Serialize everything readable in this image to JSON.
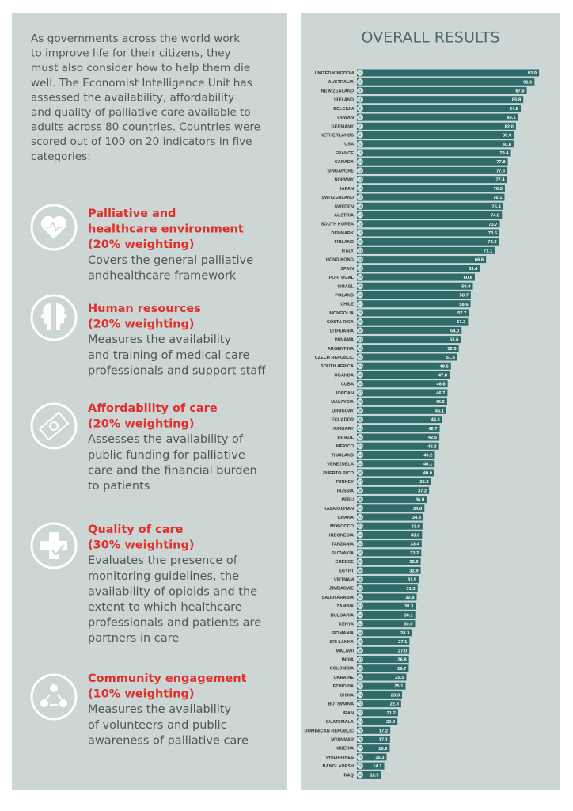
{
  "chart_data": {
    "type": "bar",
    "orientation": "horizontal",
    "title": "OVERALL RESULTS",
    "color": "#2e6b69",
    "categories": [
      "UNITED KINGDOM",
      "AUSTRALIA",
      "NEW ZEALAND",
      "IRELAND",
      "BELGIUM",
      "TAIWAN",
      "GERMANY",
      "NETHERLANDS",
      "USA",
      "FRANCE",
      "CANADA",
      "SINGAPORE",
      "NORWAY",
      "JAPAN",
      "SWITZERLAND",
      "SWEDEN",
      "AUSTRIA",
      "SOUTH KOREA",
      "DENMARK",
      "FINLAND",
      "ITALY",
      "HONG KONG",
      "SPAIN",
      "PORTUGAL",
      "ISRAEL",
      "POLAND",
      "CHILE",
      "MONGOLIA",
      "COSTA RICA",
      "LITHUANIA",
      "PANAMA",
      "ARGENTINA",
      "CZECH REPUBLIC",
      "SOUTH AFRICA",
      "UGANDA",
      "CUBA",
      "JORDAN",
      "MALAYSIA",
      "URUGUAY",
      "ECUADOR",
      "HUNGARY",
      "BRAZIL",
      "MEXICO",
      "THAILAND",
      "VENEZUELA",
      "PUERTO RICO",
      "TURKEY",
      "RUSSIA",
      "PERU",
      "KAZAKHSTAN",
      "GHANA",
      "MOROCCO",
      "INDONESIA",
      "TANZANIA",
      "SLOVAKIA",
      "GREECE",
      "EGYPT",
      "VIETNAM",
      "ZIMBABWE",
      "SAUDI ARABIA",
      "ZAMBIA",
      "BULGARIA",
      "KENYA",
      "ROMANIA",
      "SRI LANKA",
      "MALAWI",
      "INDIA",
      "COLOMBIA",
      "UKRAINE",
      "ETHIOPIA",
      "CHINA",
      "BOTSWANA",
      "IRAN",
      "GUATEMALA",
      "DOMINICAN REPUBLIC",
      "MYANMAR",
      "NIGERIA",
      "PHILIPPINES",
      "BANGLADESH",
      "IRAQ"
    ],
    "ranks": [
      "1",
      "2",
      "3",
      "4",
      "5",
      "6",
      "7",
      "8",
      "9",
      "10",
      "11",
      "12",
      "13",
      "14",
      "15",
      "16",
      "17",
      "18",
      "19",
      "20",
      "21",
      "22",
      "23",
      "24",
      "25",
      "26",
      "27",
      "28",
      "29",
      "30",
      "31",
      "32",
      "33",
      "34",
      "35",
      "36",
      "37",
      "38",
      "39",
      "40",
      "41",
      "42",
      "43",
      "44",
      "45",
      "46",
      "47",
      "48",
      "49",
      "50",
      "51",
      "52",
      "53",
      "54",
      "55",
      "=56",
      "=56",
      "58",
      "59",
      "60",
      "61",
      "62",
      "63",
      "64",
      "65",
      "66",
      "67",
      "68",
      "69",
      "70",
      "71",
      "72",
      "73",
      "74",
      "75",
      "76",
      "77",
      "78",
      "79",
      "80"
    ],
    "values": [
      93.9,
      91.6,
      87.6,
      85.8,
      84.5,
      83.1,
      82,
      80.9,
      80.8,
      79.4,
      77.8,
      77.6,
      77.4,
      76.3,
      76.1,
      75.4,
      74.8,
      73.7,
      73.5,
      73.3,
      71.1,
      66.6,
      63.4,
      60.8,
      59.8,
      58.7,
      58.6,
      57.7,
      57.3,
      54,
      53.6,
      52.5,
      51.8,
      48.5,
      47.8,
      46.8,
      46.7,
      46.5,
      46.1,
      44,
      42.7,
      42.5,
      42.3,
      40.2,
      40.1,
      40,
      38.2,
      37.2,
      36,
      34.8,
      34.3,
      33.8,
      33.6,
      33.4,
      33.2,
      32.9,
      32.9,
      31.9,
      31.3,
      30.8,
      30.3,
      30.1,
      30,
      28.3,
      27.1,
      27,
      26.8,
      26.7,
      25.5,
      25.1,
      23.3,
      22.8,
      21.2,
      20.9,
      17.2,
      17.1,
      16.9,
      15.3,
      14.1,
      12.5
    ],
    "value_labels": [
      "93.9",
      "91.6",
      "87.6",
      "85.8",
      "84.5",
      "83.1",
      "82.0",
      "80.9",
      "80.8",
      "79.4",
      "77.8",
      "77.6",
      "77.4",
      "76.3",
      "76.1",
      "75.4",
      "74.8",
      "73.7",
      "73.5",
      "73.3",
      "71.1",
      "66.6",
      "63.4",
      "60.8",
      "59.8",
      "58.7",
      "58.6",
      "57.7",
      "57.3",
      "54.0",
      "53.6",
      "52.5",
      "51.8",
      "48.5",
      "47.8",
      "46.8",
      "46.7",
      "46.5",
      "46.1",
      "44.0",
      "42.7",
      "42.5",
      "42.3",
      "40.2",
      "40.1",
      "40.0",
      "38.2",
      "37.2",
      "36.0",
      "34.8",
      "34.3",
      "33.8",
      "33.6",
      "33.4",
      "33.2",
      "32.9",
      "32.9",
      "31.9",
      "31.3",
      "30.8",
      "30.3",
      "30.1",
      "30.0",
      "28.3",
      "27.1",
      "27.0",
      "26.8",
      "26.7",
      "25.5",
      "25.1",
      "23.3",
      "22.8",
      "21.2",
      "20.9",
      "17.2",
      "17.1",
      "16.9",
      "15.3",
      "14.1",
      "12.5"
    ]
  },
  "intro": {
    "lines": [
      "As governments across the world work",
      "to improve life for their citizens, they",
      "must also consider how to help them die",
      "well. The Economist Intelligence Unit has",
      "assessed the availability, affordability",
      "and quality of palliative care available to",
      "adults across 80 countries. Countries were",
      "scored out of 100 on 20 indicators in five",
      "categories:"
    ]
  },
  "sections": [
    {
      "title_lines": [
        "Palliative and",
        "healthcare environment",
        "(20% weighting)"
      ],
      "desc_lines": [
        "Covers the general palliative",
        "andhealthcare framework"
      ]
    },
    {
      "title_lines": [
        "Human resources",
        "(20% weighting)"
      ],
      "desc_lines": [
        "Measures the availability",
        "and training of medical care",
        "professionals and support staff"
      ]
    },
    {
      "title_lines": [
        "Affordability of care",
        "(20% weighting)"
      ],
      "desc_lines": [
        "Assesses the availability of",
        "public funding for palliative",
        "care and the financial burden",
        "to patients"
      ]
    },
    {
      "title_lines": [
        "Quality of care",
        "(30% weighting)"
      ],
      "desc_lines": [
        "Evaluates the presence of",
        "monitoring guidelines, the",
        "availability of opioids and the",
        "extent to which healthcare",
        "professionals and patients are",
        "partners in care"
      ]
    },
    {
      "title_lines": [
        "Community engagement",
        "(10% weighting)"
      ],
      "desc_lines": [
        "Measures the availability",
        "of volunteers and public",
        "awareness of palliative care"
      ]
    }
  ]
}
